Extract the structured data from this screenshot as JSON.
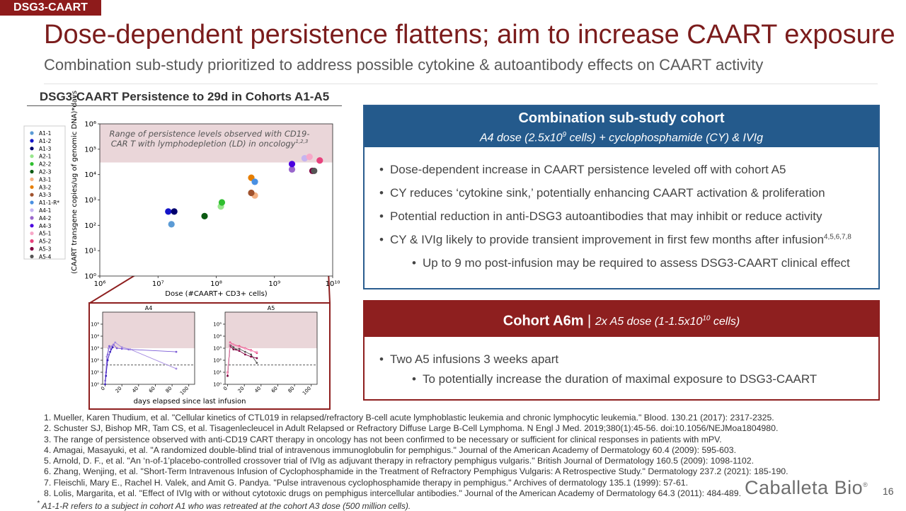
{
  "tag": "DSG3-CAART",
  "title": "Dose-dependent persistence flattens; aim to increase CAART exposure",
  "subtitle": "Combination sub-study prioritized to address possible cytokine & autoantibody effects on CAART activity",
  "chart_data": [
    {
      "type": "scatter",
      "title": "DSG3-CAART Persistence to 29d in Cohorts A1-A5",
      "xlabel": "Dose (#CAART+ CD3+ cells)",
      "ylabel": "(CAART transgene copies/ug of genomic DNA)*days",
      "log_x": true,
      "log_y": true,
      "xlim": [
        1000000,
        10000000000
      ],
      "ylim": [
        1,
        1000000
      ],
      "xticks": [
        {
          "value": 1000000,
          "label": "10⁶"
        },
        {
          "value": 10000000,
          "label": "10⁷"
        },
        {
          "value": 100000000,
          "label": "10⁸"
        },
        {
          "value": 1000000000,
          "label": "10⁹"
        },
        {
          "value": 10000000000,
          "label": "10¹⁰"
        }
      ],
      "yticks": [
        {
          "value": 1,
          "label": "10⁰"
        },
        {
          "value": 10,
          "label": "10¹"
        },
        {
          "value": 100,
          "label": "10²"
        },
        {
          "value": 1000,
          "label": "10³"
        },
        {
          "value": 10000,
          "label": "10⁴"
        },
        {
          "value": 100000,
          "label": "10⁵"
        },
        {
          "value": 1000000,
          "label": "10⁶"
        }
      ],
      "band": [
        30000,
        1000000
      ],
      "band_color": "#ead6d9",
      "annotation": {
        "lines": [
          "Range of persistence levels observed with CD19-",
          "CAR T with lymphodepletion (LD) in oncology"
        ],
        "sup": "1,2,3"
      },
      "legend": "left",
      "series": [
        {
          "name": "A1-1",
          "color": "#5b9bd5",
          "x": [
            17000000
          ],
          "values": [
            110
          ]
        },
        {
          "name": "A1-2",
          "color": "#1414c8",
          "x": [
            15000000
          ],
          "values": [
            350
          ]
        },
        {
          "name": "A1-3",
          "color": "#00006e",
          "x": [
            19000000
          ],
          "values": [
            350
          ]
        },
        {
          "name": "A2-1",
          "color": "#98e68c",
          "x": [
            120000000
          ],
          "values": [
            550
          ]
        },
        {
          "name": "A2-2",
          "color": "#2fbf2f",
          "x": [
            125000000
          ],
          "values": [
            800
          ]
        },
        {
          "name": "A2-3",
          "color": "#0b5a12",
          "x": [
            63000000
          ],
          "values": [
            230
          ]
        },
        {
          "name": "A3-1",
          "color": "#f4b183",
          "x": [
            460000000
          ],
          "values": [
            1500
          ]
        },
        {
          "name": "A3-2",
          "color": "#e67e00",
          "x": [
            400000000
          ],
          "values": [
            7500
          ]
        },
        {
          "name": "A3-3",
          "color": "#a0522d",
          "x": [
            400000000
          ],
          "values": [
            1900
          ]
        },
        {
          "name": "A1-1-R*",
          "color": "#4a90e2",
          "x": [
            460000000
          ],
          "values": [
            5200
          ]
        },
        {
          "name": "A4-1",
          "color": "#c6b4f0",
          "x": [
            3300000000
          ],
          "values": [
            44000
          ]
        },
        {
          "name": "A4-2",
          "color": "#9966cc",
          "x": [
            2000000000
          ],
          "values": [
            16000
          ]
        },
        {
          "name": "A4-3",
          "color": "#4b00e0",
          "x": [
            2000000000
          ],
          "values": [
            26000
          ]
        },
        {
          "name": "A5-1",
          "color": "#f7a8c8",
          "x": [
            4000000000
          ],
          "values": [
            50000
          ]
        },
        {
          "name": "A5-2",
          "color": "#e8427d",
          "x": [
            6000000000
          ],
          "values": [
            36000
          ]
        },
        {
          "name": "A5-3",
          "color": "#800040",
          "x": [
            4500000000
          ],
          "values": [
            14000
          ]
        },
        {
          "name": "A5-4",
          "color": "#555555",
          "x": [
            4800000000
          ],
          "values": [
            14000
          ]
        }
      ]
    },
    {
      "type": "line",
      "title": "A4",
      "log_y": true,
      "xlim": [
        -3,
        107
      ],
      "ylim": [
        1,
        1000000
      ],
      "xticks": [
        0,
        20,
        40,
        60,
        80,
        100
      ],
      "yticks": [
        {
          "value": 1,
          "label": "10⁰"
        },
        {
          "value": 10,
          "label": "10¹"
        },
        {
          "value": 100,
          "label": "10²"
        },
        {
          "value": 1000,
          "label": "10³"
        },
        {
          "value": 10000,
          "label": "10⁴"
        },
        {
          "value": 100000,
          "label": "10⁵"
        }
      ],
      "band": [
        1000,
        1000000
      ],
      "band_color": "#ead6d9",
      "hline": 40,
      "series": [
        {
          "color": "#7b5bd6",
          "x": [
            1,
            3,
            5,
            7,
            10,
            14,
            20,
            28,
            85
          ],
          "values": [
            10,
            300,
            1500,
            800,
            2000,
            1000,
            900,
            800,
            500
          ]
        },
        {
          "color": "#a48ae0",
          "x": [
            0,
            2,
            4,
            8,
            12,
            20,
            30,
            85
          ],
          "values": [
            2,
            200,
            1000,
            1500,
            3000,
            1200,
            800,
            20
          ]
        },
        {
          "color": "#3a1fbf",
          "x": [
            0,
            1,
            3,
            6,
            9
          ],
          "values": [
            1,
            5,
            100,
            500,
            1200
          ]
        }
      ]
    },
    {
      "type": "line",
      "title": "A5",
      "log_y": true,
      "xlim": [
        -3,
        107
      ],
      "ylim": [
        1,
        1000000
      ],
      "xticks": [
        0,
        20,
        40,
        60,
        80,
        100
      ],
      "yticks": [
        {
          "value": 1,
          "label": "10⁰"
        },
        {
          "value": 10,
          "label": "10¹"
        },
        {
          "value": 100,
          "label": "10²"
        },
        {
          "value": 1000,
          "label": "10³"
        },
        {
          "value": 10000,
          "label": "10⁴"
        },
        {
          "value": 100000,
          "label": "10⁵"
        }
      ],
      "band": [
        1000,
        1000000
      ],
      "band_color": "#ead6d9",
      "hline": 40,
      "series": [
        {
          "color": "#555555",
          "x": [
            0,
            3,
            7,
            10,
            14,
            21,
            28,
            35
          ],
          "values": [
            5,
            2000,
            1200,
            800,
            900,
            500,
            300,
            60
          ]
        },
        {
          "color": "#e8427d",
          "x": [
            0,
            3,
            7,
            14,
            21,
            28,
            35
          ],
          "values": [
            10,
            3000,
            2000,
            1500,
            1000,
            700,
            400
          ]
        },
        {
          "color": "#800040",
          "x": [
            0,
            3,
            7,
            14,
            21,
            28,
            35
          ],
          "values": [
            5,
            1500,
            800,
            600,
            300,
            200,
            150
          ]
        },
        {
          "color": "#f7a8c8",
          "x": [
            0,
            3,
            7,
            14,
            21,
            28,
            35
          ],
          "values": [
            8,
            2500,
            1800,
            1200,
            900,
            600,
            500
          ]
        }
      ]
    }
  ],
  "inset_xlabel": "days elapsed since last infusion",
  "combo_box": {
    "title": "Combination sub-study cohort",
    "subtitle_pre": "A4 dose (2.5x10",
    "subtitle_sup": "9",
    "subtitle_post": " cells) + cyclophosphamide (CY) & IVIg",
    "bullets": [
      {
        "level": 1,
        "text": "Dose-dependent increase in CAART persistence leveled off with cohort A5"
      },
      {
        "level": 1,
        "text": "CY reduces ‘cytokine sink,’ potentially enhancing CAART activation & proliferation"
      },
      {
        "level": 1,
        "text": "Potential reduction in anti-DSG3 autoantibodies that may inhibit or reduce activity"
      },
      {
        "level": 1,
        "text": "CY & IVIg likely to provide transient improvement in first few months after infusion",
        "sup": "4,5,6,7,8"
      },
      {
        "level": 2,
        "text": "Up to 9 mo post-infusion may be required to assess DSG3-CAART clinical effect"
      }
    ]
  },
  "a6m_box": {
    "title": "Cohort A6m",
    "separator": "|",
    "subtitle_pre": "2x A5 dose  (1-1.5x10",
    "subtitle_sup": "10",
    "subtitle_post": " cells)",
    "bullets": [
      {
        "level": 1,
        "text": "Two A5 infusions 3 weeks apart"
      },
      {
        "level": 2,
        "text": "To potentially increase the duration of maximal exposure to DSG3-CAART"
      }
    ]
  },
  "references": [
    "1. Mueller, Karen Thudium, et al. \"Cellular kinetics of CTL019 in relapsed/refractory B-cell acute lymphoblastic leukemia and chronic lymphocytic leukemia.\" Blood. 130.21 (2017): 2317-2325.",
    "2. Schuster SJ, Bishop MR, Tam CS, et al. Tisagenlecleucel in Adult Relapsed or Refractory Diffuse Large B-Cell Lymphoma. N Engl J Med. 2019;380(1):45-56. doi:10.1056/NEJMoa1804980.",
    "3. The range of persistence observed with anti-CD19 CART therapy in oncology has not been confirmed to be necessary or sufficient for clinical responses in patients with mPV.",
    "4. Amagai, Masayuki, et al. \"A randomized double-blind trial of intravenous immunoglobulin for pemphigus.\" Journal of the American Academy of Dermatology 60.4 (2009): 595-603.",
    "5. Arnold, D. F., et al. \"An ‘n-of-1’placebo-controlled crossover trial of IVIg as adjuvant therapy in refractory pemphigus vulgaris.\" British Journal of Dermatology 160.5 (2009): 1098-1102.",
    "6. Zhang, Wenjing, et al. \"Short-Term Intravenous Infusion of Cyclophosphamide in the Treatment of Refractory Pemphigus Vulgaris: A Retrospective Study.\" Dermatology 237.2 (2021): 185-190.",
    "7. Fleischli, Mary E., Rachel H. Valek, and Amit G. Pandya. \"Pulse intravenous cyclophosphamide therapy in pemphigus.\" Archives of dermatology 135.1 (1999): 57-61.",
    "8. Lolis, Margarita, et al. \"Effect of IVIg with or without cytotoxic drugs on pemphigus intercellular antibodies.\" Journal of the American Academy of Dermatology 64.3 (2011): 484-489."
  ],
  "footnote_mark": "*",
  "footnote": "A1-1-R refers to a subject in cohort A1 who was retreated at the cohort A3 dose (500 million cells).",
  "logo": "Caballeta Bio",
  "logo_mark": "®",
  "page_number": "16"
}
